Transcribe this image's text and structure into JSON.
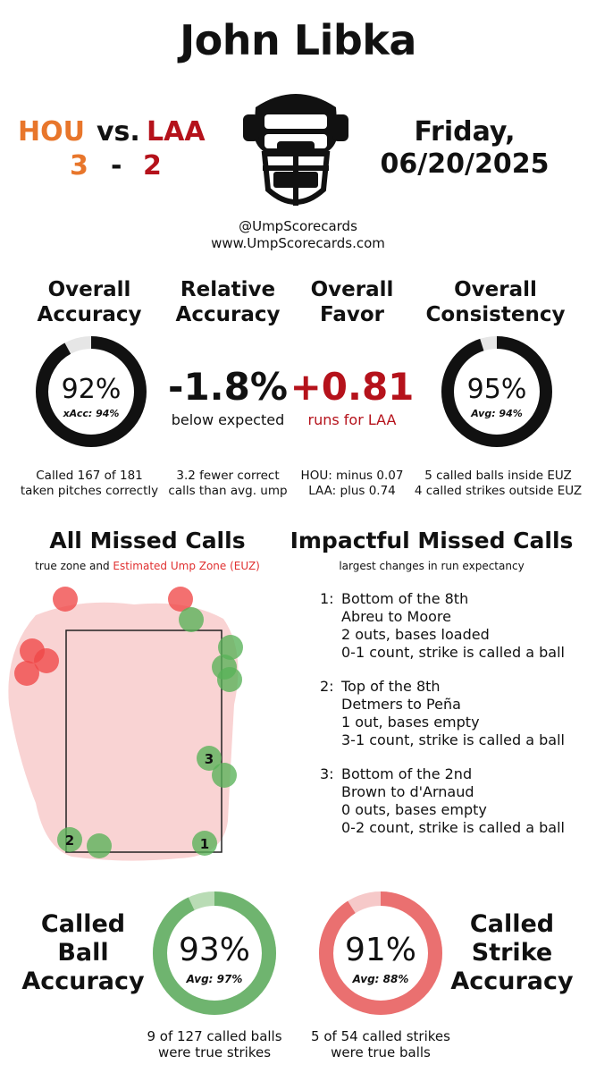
{
  "title": "John Libka",
  "game": {
    "away_team": "HOU",
    "vs_label": "vs.",
    "home_team": "LAA",
    "away_score": "3",
    "dash": "-",
    "home_score": "2",
    "date_line1": "Friday,",
    "date_line2": "06/20/2025"
  },
  "handle": "@UmpScorecards",
  "website": "www.UmpScorecards.com",
  "stats": {
    "accuracy": {
      "heading1": "Overall",
      "heading2": "Accuracy",
      "value": "92%",
      "sub": "xAcc: 94%",
      "fraction": 0.92,
      "note1": "Called 167 of 181",
      "note2": "taken pitches correctly"
    },
    "relative": {
      "heading1": "Relative",
      "heading2": "Accuracy",
      "value": "-1.8%",
      "sub": "below expected",
      "note1": "3.2 fewer correct",
      "note2": "calls than avg. ump"
    },
    "favor": {
      "heading1": "Overall",
      "heading2": "Favor",
      "value": "+0.81",
      "sub": "runs for LAA",
      "note1": "HOU: minus 0.07",
      "note2": "LAA: plus 0.74"
    },
    "consistency": {
      "heading1": "Overall",
      "heading2": "Consistency",
      "value": "95%",
      "sub": "Avg: 94%",
      "fraction": 0.95,
      "note1": "5 called balls inside EUZ",
      "note2": "4 called strikes outside EUZ"
    }
  },
  "missed": {
    "heading": "All Missed Calls",
    "sub_plain": "true zone and ",
    "sub_red": "Estimated Ump Zone (EUZ)",
    "markers": [
      "1",
      "2",
      "3"
    ]
  },
  "impactful": {
    "heading": "Impactful Missed Calls",
    "sub": "largest changes in run expectancy",
    "items": [
      {
        "num": "1:",
        "l1": "Bottom of the 8th",
        "l2": "Abreu to Moore",
        "l3": "2 outs, bases loaded",
        "l4": "0-1 count, strike is called a ball"
      },
      {
        "num": "2:",
        "l1": "Top of the 8th",
        "l2": "Detmers to Peña",
        "l3": "1 out, bases empty",
        "l4": "3-1 count, strike is called a ball"
      },
      {
        "num": "3:",
        "l1": "Bottom of the 2nd",
        "l2": "Brown to d'Arnaud",
        "l3": "0 outs, bases empty",
        "l4": "0-2 count, strike is called a ball"
      }
    ]
  },
  "called_ball": {
    "h1": "Called",
    "h2": "Ball",
    "h3": "Accuracy",
    "value": "93%",
    "avg": "Avg: 97%",
    "fraction": 0.93,
    "note1": "9 of 127 called balls",
    "note2": "were true strikes"
  },
  "called_strike": {
    "h1": "Called",
    "h2": "Strike",
    "h3": "Accuracy",
    "value": "91%",
    "avg": "Avg: 88%",
    "fraction": 0.91,
    "note1": "5 of 54 called strikes",
    "note2": "were true balls"
  },
  "colors": {
    "hou": "#e8762b",
    "laa": "#b5121b",
    "ring": "#111111",
    "green": "#6fb46f",
    "green_light": "#b9dcb5",
    "red": "#ea7070",
    "red_light": "#f6c9c9",
    "euz_fill": "#f9d3d3",
    "missed_green": "#59b259",
    "missed_red": "#f04848"
  }
}
